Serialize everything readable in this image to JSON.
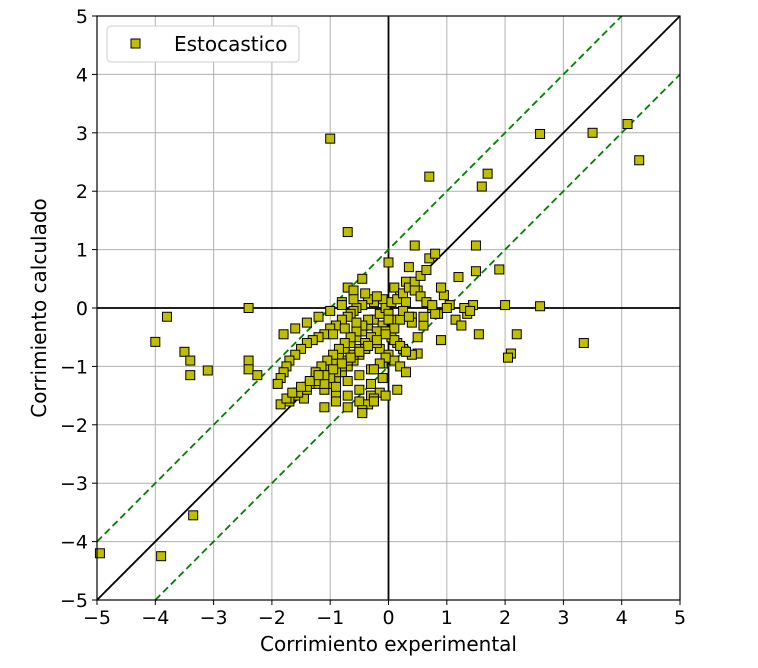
{
  "chart_data": {
    "type": "scatter",
    "xlabel": "Corrimiento experimental",
    "ylabel": "Corrimiento calculado",
    "xlim": [
      -5,
      5
    ],
    "ylim": [
      -5,
      5
    ],
    "xticks": [
      -5,
      -4,
      -3,
      -2,
      -1,
      0,
      1,
      2,
      3,
      4,
      5
    ],
    "yticks": [
      -5,
      -4,
      -3,
      -2,
      -1,
      0,
      1,
      2,
      3,
      4,
      5
    ],
    "xtick_labels": [
      "−5",
      "−4",
      "−3",
      "−2",
      "−1",
      "0",
      "1",
      "2",
      "3",
      "4",
      "5"
    ],
    "ytick_labels": [
      "−5",
      "−4",
      "−3",
      "−2",
      "−1",
      "0",
      "1",
      "2",
      "3",
      "4",
      "5"
    ],
    "grid": true,
    "legend_position": "top-left",
    "reference_lines": {
      "identity": {
        "slope": 1,
        "intercept": 0,
        "style": "solid",
        "color": "#000000"
      },
      "bands": [
        {
          "slope": 1,
          "intercept": 1,
          "style": "dashed",
          "color": "#008000"
        },
        {
          "slope": 1,
          "intercept": -1,
          "style": "dashed",
          "color": "#008000"
        }
      ],
      "axes_zero": true
    },
    "series": [
      {
        "name": "Estocastico",
        "marker": "square",
        "color": "#bfbf00",
        "edge_color": "#000000",
        "x": [
          -4.95,
          -3.9,
          -3.35,
          -4.0,
          -3.8,
          -3.5,
          -3.4,
          -3.4,
          -3.1,
          -2.4,
          -2.4,
          -2.4,
          -2.25,
          -1.0,
          -0.7,
          -0.7,
          -0.45,
          0.0,
          0.7,
          0.7,
          1.7,
          1.6,
          2.6,
          3.5,
          4.1,
          4.3,
          0.45,
          0.8,
          1.5,
          1.2,
          1.9,
          2.0,
          2.6,
          3.35,
          2.1,
          2.05,
          2.2,
          1.5,
          1.55,
          0.95,
          0.9,
          0.5,
          0.4,
          0.35,
          0.3,
          0.1,
          0.2,
          -0.1,
          -0.25,
          -0.35,
          -0.45,
          -0.55,
          -0.6,
          -0.65,
          -0.7,
          -0.8,
          -0.9,
          -1.0,
          -1.1,
          -1.2,
          -1.3,
          -1.4,
          -1.5,
          -1.6,
          -1.7,
          -1.75,
          -1.8,
          -1.85,
          -1.9,
          -1.55,
          -1.45,
          -1.35,
          -1.25,
          -1.15,
          -1.05,
          -0.95,
          -0.85,
          -0.75,
          -0.65,
          -0.55,
          -0.45,
          -0.35,
          -0.25,
          -0.15,
          -0.05,
          0.05,
          0.15,
          0.25,
          0.35,
          0.45,
          0.55,
          0.65,
          0.75,
          0.85,
          1.05,
          1.15,
          1.25,
          1.35,
          1.45,
          -0.2,
          -0.3,
          -0.4,
          -0.5,
          -0.6,
          -0.7,
          -0.8,
          -0.9,
          -1.0,
          -1.1,
          -0.15,
          0.0,
          0.1,
          0.2,
          0.3,
          0.4,
          0.5,
          0.6,
          0.1,
          -0.1,
          -0.2,
          -0.3,
          -0.4,
          -0.5,
          -0.6,
          -0.7,
          -0.8,
          -0.9,
          -1.0,
          -1.2,
          -1.4,
          -1.6,
          -1.7,
          -0.05,
          0.05,
          0.15,
          0.25,
          -0.35,
          -0.45,
          -0.55,
          -0.65,
          -0.75,
          -0.85,
          -0.95,
          -1.05,
          -1.15,
          -1.25,
          -0.3,
          -0.5,
          -0.7,
          -0.9,
          -1.1,
          -1.3,
          -0.2,
          -0.4,
          -0.6,
          -0.8,
          0.0,
          0.2,
          0.4,
          0.6,
          0.8,
          0.3,
          0.5,
          -0.1,
          -0.3,
          -0.5,
          -0.7,
          -0.9,
          -0.15,
          -0.25,
          -0.35,
          -0.45,
          0.1,
          0.2,
          0.3,
          -0.05,
          -0.15,
          -0.25,
          -0.6,
          -0.8,
          -1.0,
          -1.2,
          -1.4,
          -1.6,
          -1.8,
          -0.55,
          -0.75,
          -0.95,
          -0.2,
          -0.4,
          -0.6,
          0.0,
          0.1,
          -0.05,
          -0.2,
          -0.35,
          -0.5,
          -0.65,
          -0.8,
          -0.95,
          -1.1,
          -1.25,
          -1.4,
          -1.55,
          -1.7,
          -1.85,
          -1.75,
          -1.65,
          -1.5,
          -1.35,
          -1.2,
          0.45,
          0.55,
          0.65,
          0.25,
          0.35,
          -0.1,
          -0.3,
          -0.5,
          -0.7,
          -0.9,
          -1.1,
          -0.45,
          -0.25,
          -0.05,
          0.15,
          1.0,
          1.3,
          1.4,
          0.9,
          0.75
        ],
        "y": [
          -4.2,
          -4.25,
          -3.55,
          -0.58,
          -0.15,
          -0.75,
          -1.15,
          -0.9,
          -1.07,
          0.0,
          -0.9,
          -1.05,
          -1.15,
          2.9,
          1.3,
          0.35,
          0.5,
          0.78,
          2.25,
          0.85,
          2.3,
          2.08,
          2.98,
          3.0,
          3.15,
          2.53,
          1.07,
          0.93,
          1.07,
          0.53,
          0.66,
          0.05,
          0.03,
          -0.6,
          -0.78,
          -0.85,
          -0.45,
          0.63,
          -0.45,
          0.22,
          -0.55,
          -0.78,
          -0.15,
          0.7,
          0.45,
          0.35,
          0.2,
          0.15,
          0.1,
          0.15,
          0.05,
          0.0,
          -0.05,
          -0.1,
          -0.15,
          -0.2,
          -0.3,
          -0.35,
          -0.45,
          -0.5,
          -0.55,
          -0.6,
          -0.7,
          -0.8,
          -0.9,
          -1.0,
          -1.1,
          -1.2,
          -1.3,
          -1.45,
          -1.55,
          -1.3,
          -1.2,
          -1.1,
          -1.0,
          -0.9,
          -0.8,
          -0.7,
          -0.6,
          -0.5,
          -0.4,
          -0.3,
          -0.2,
          -0.1,
          0.0,
          0.1,
          0.15,
          0.25,
          0.35,
          0.45,
          0.55,
          0.65,
          0.0,
          -0.1,
          0.05,
          -0.2,
          -0.3,
          -0.1,
          0.05,
          -0.5,
          -0.6,
          -0.7,
          -0.8,
          -0.9,
          -1.0,
          -1.1,
          -1.2,
          -1.3,
          -1.4,
          -0.7,
          -0.8,
          -0.9,
          -1.0,
          -1.1,
          -0.8,
          -0.5,
          -0.3,
          -0.2,
          -0.3,
          -0.4,
          -0.5,
          -0.6,
          -0.7,
          -0.8,
          -0.9,
          -1.0,
          -1.1,
          -1.2,
          -1.3,
          -1.4,
          -1.5,
          -1.6,
          -0.4,
          -0.5,
          -0.6,
          -0.7,
          -0.2,
          -0.3,
          -0.4,
          -0.5,
          -0.6,
          -0.7,
          -0.8,
          -0.9,
          -1.0,
          -1.1,
          -1.5,
          -1.6,
          -1.7,
          -1.45,
          -1.3,
          -1.25,
          0.2,
          0.25,
          0.3,
          0.1,
          -0.1,
          -0.2,
          -0.25,
          -0.15,
          -0.1,
          0.1,
          0.3,
          -0.95,
          -1.05,
          -1.15,
          -1.25,
          -1.35,
          -1.45,
          -1.55,
          -1.65,
          -1.75,
          -0.55,
          -0.65,
          -0.75,
          -0.85,
          -0.95,
          -1.05,
          0.15,
          0.05,
          -0.05,
          -0.15,
          -0.25,
          -0.35,
          -0.45,
          -0.25,
          -0.35,
          -0.45,
          -0.6,
          -0.7,
          -0.8,
          -0.2,
          -0.35,
          -0.45,
          -0.55,
          -0.65,
          -0.75,
          -0.85,
          -0.95,
          -1.05,
          -1.15,
          -1.25,
          -1.35,
          -1.45,
          -1.55,
          -1.65,
          -1.55,
          -1.45,
          -1.35,
          -1.25,
          -1.15,
          0.3,
          0.2,
          0.1,
          -0.05,
          -0.15,
          -1.2,
          -1.3,
          -1.4,
          -1.5,
          -1.6,
          -1.7,
          -1.8,
          -1.6,
          -1.5,
          -1.4,
          0.0,
          0.0,
          -0.05,
          0.35,
          0.05
        ]
      }
    ]
  }
}
